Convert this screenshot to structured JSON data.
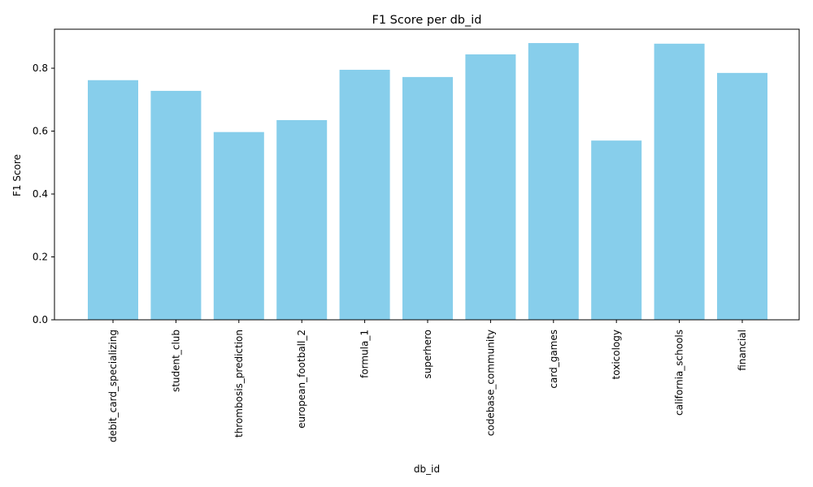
{
  "chart_data": {
    "type": "bar",
    "title": "F1 Score per db_id",
    "xlabel": "db_id",
    "ylabel": "F1 Score",
    "categories": [
      "debit_card_specializing",
      "student_club",
      "thrombosis_prediction",
      "european_football_2",
      "formula_1",
      "superhero",
      "codebase_community",
      "card_games",
      "toxicology",
      "california_schools",
      "financial"
    ],
    "values": [
      0.762,
      0.728,
      0.597,
      0.635,
      0.795,
      0.772,
      0.844,
      0.88,
      0.57,
      0.878,
      0.785
    ],
    "ylim": [
      0,
      0.924
    ],
    "yticks": [
      0.0,
      0.2,
      0.4,
      0.6,
      0.8
    ],
    "ytick_labels": [
      "0.0",
      "0.2",
      "0.4",
      "0.6",
      "0.8"
    ],
    "bar_color": "#87ceeb",
    "grid": false,
    "legend": "none"
  }
}
